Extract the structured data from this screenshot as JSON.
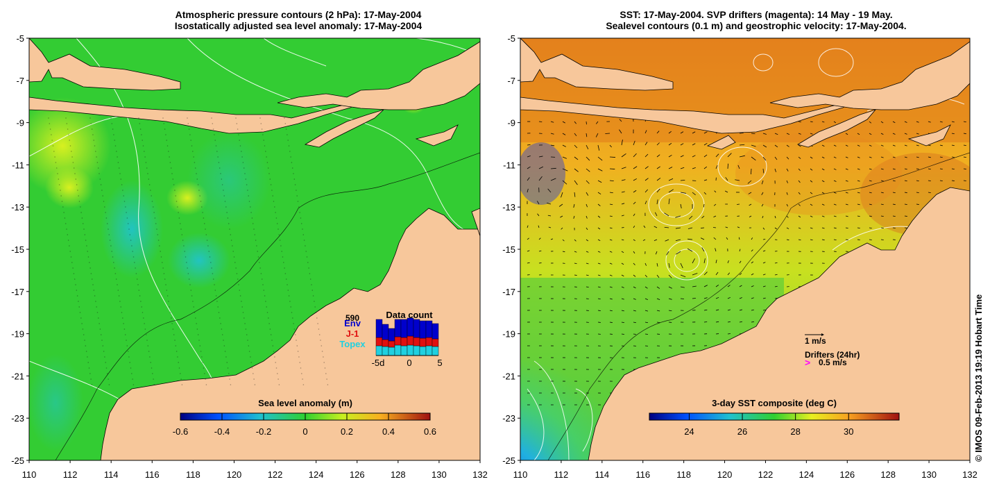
{
  "panels": {
    "left": {
      "title_line1": "Atmospheric pressure contours (2 hPa): 17-May-2004",
      "title_line2": "Isostatically adjusted sea level anomaly: 17-May-2004",
      "colorbar_title": "Sea level anomaly (m)",
      "colorbar_ticks": [
        "-0.6",
        "-0.4",
        "-0.2",
        "0",
        "0.2",
        "0.4",
        "0.6"
      ],
      "colorbar_range": [
        -0.6,
        0.6
      ],
      "data_count": {
        "title": "Data count",
        "count": "590",
        "legend": [
          "Env",
          "J-1",
          "Topex"
        ],
        "legend_colors": [
          "#0000cc",
          "#e01010",
          "#20d0e0"
        ],
        "x_ticks": [
          "-5d",
          "0",
          "5"
        ]
      }
    },
    "right": {
      "title_line1": "SST: 17-May-2004. SVP drifters (magenta): 14 May - 19 May.",
      "title_line2": "Sealevel contours (0.1 m) and geostrophic velocity: 17-May-2004.",
      "colorbar_title": "3-day SST composite (deg C)",
      "colorbar_ticks": [
        "24",
        "26",
        "28",
        "30"
      ],
      "colorbar_range": [
        22.5,
        31.9
      ],
      "legend_velocity": "1 m/s",
      "legend_drifters": "Drifters (24hr)",
      "legend_drifter_speed": "0.5 m/s",
      "legend_drifter_arrow": ">"
    }
  },
  "axes": {
    "x_ticks": [
      "110",
      "112",
      "114",
      "116",
      "118",
      "120",
      "122",
      "124",
      "126",
      "128",
      "130",
      "132"
    ],
    "y_ticks": [
      "-5",
      "-7",
      "-9",
      "-11",
      "-13",
      "-15",
      "-17",
      "-19",
      "-21",
      "-23",
      "-25"
    ],
    "lon_range": [
      110,
      132
    ],
    "lat_range": [
      -25,
      -5
    ]
  },
  "credit": "© IMOS 09-Feb-2013 19:19 Hobart Time",
  "colors": {
    "land": "#f7c79b",
    "sea_level_ocean": "#33cc33",
    "sst_ocean": "#f0a020"
  }
}
